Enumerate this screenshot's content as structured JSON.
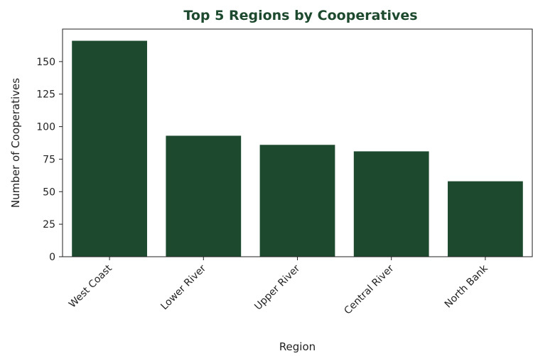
{
  "chart_data": {
    "type": "bar",
    "title": "Top 5 Regions by Cooperatives",
    "xlabel": "Region",
    "ylabel": "Number of Cooperatives",
    "categories": [
      "West Coast",
      "Lower River",
      "Upper River",
      "Central River",
      "North Bank"
    ],
    "values": [
      166,
      93,
      86,
      81,
      58
    ],
    "ylim": [
      0,
      175
    ],
    "yticks": [
      0,
      25,
      50,
      75,
      100,
      125,
      150
    ],
    "grid": false,
    "bar_color": "#1d4a2e",
    "title_color": "#1d4a2e"
  }
}
